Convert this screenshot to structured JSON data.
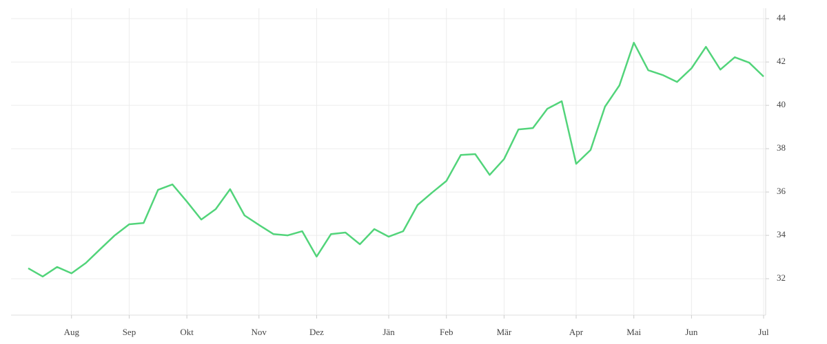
{
  "chart_data": {
    "type": "line",
    "categories": [
      null,
      null,
      null,
      "Aug",
      null,
      null,
      null,
      "Sep",
      null,
      null,
      null,
      "Okt",
      null,
      null,
      null,
      null,
      "Nov",
      null,
      null,
      null,
      "Dez",
      null,
      null,
      null,
      null,
      "Jän",
      null,
      null,
      null,
      "Feb",
      null,
      null,
      null,
      "Mär",
      null,
      null,
      null,
      null,
      "Apr",
      null,
      null,
      null,
      "Mai",
      null,
      null,
      null,
      "Jun",
      null,
      null,
      null,
      null,
      "Jul"
    ],
    "series": [
      {
        "color": "#52d47a",
        "values": [
          32.48,
          32.1,
          32.54,
          32.25,
          32.73,
          33.37,
          34.0,
          34.51,
          34.57,
          36.1,
          36.35,
          35.56,
          34.73,
          35.21,
          36.13,
          34.92,
          34.48,
          34.06,
          34.0,
          34.19,
          33.02,
          34.06,
          34.13,
          33.59,
          34.29,
          33.94,
          34.19,
          35.4,
          35.97,
          36.51,
          37.71,
          37.75,
          36.79,
          37.52,
          38.89,
          38.95,
          39.84,
          40.19,
          37.3,
          37.94,
          39.94,
          40.92,
          42.89,
          41.62,
          41.4,
          41.08,
          41.71,
          42.7,
          41.65,
          42.22,
          41.97,
          41.33
        ]
      }
    ],
    "ylim": [
      30.32,
      44.48
    ],
    "yticks": [
      32,
      34,
      36,
      38,
      40,
      42,
      44
    ],
    "grid": true
  }
}
